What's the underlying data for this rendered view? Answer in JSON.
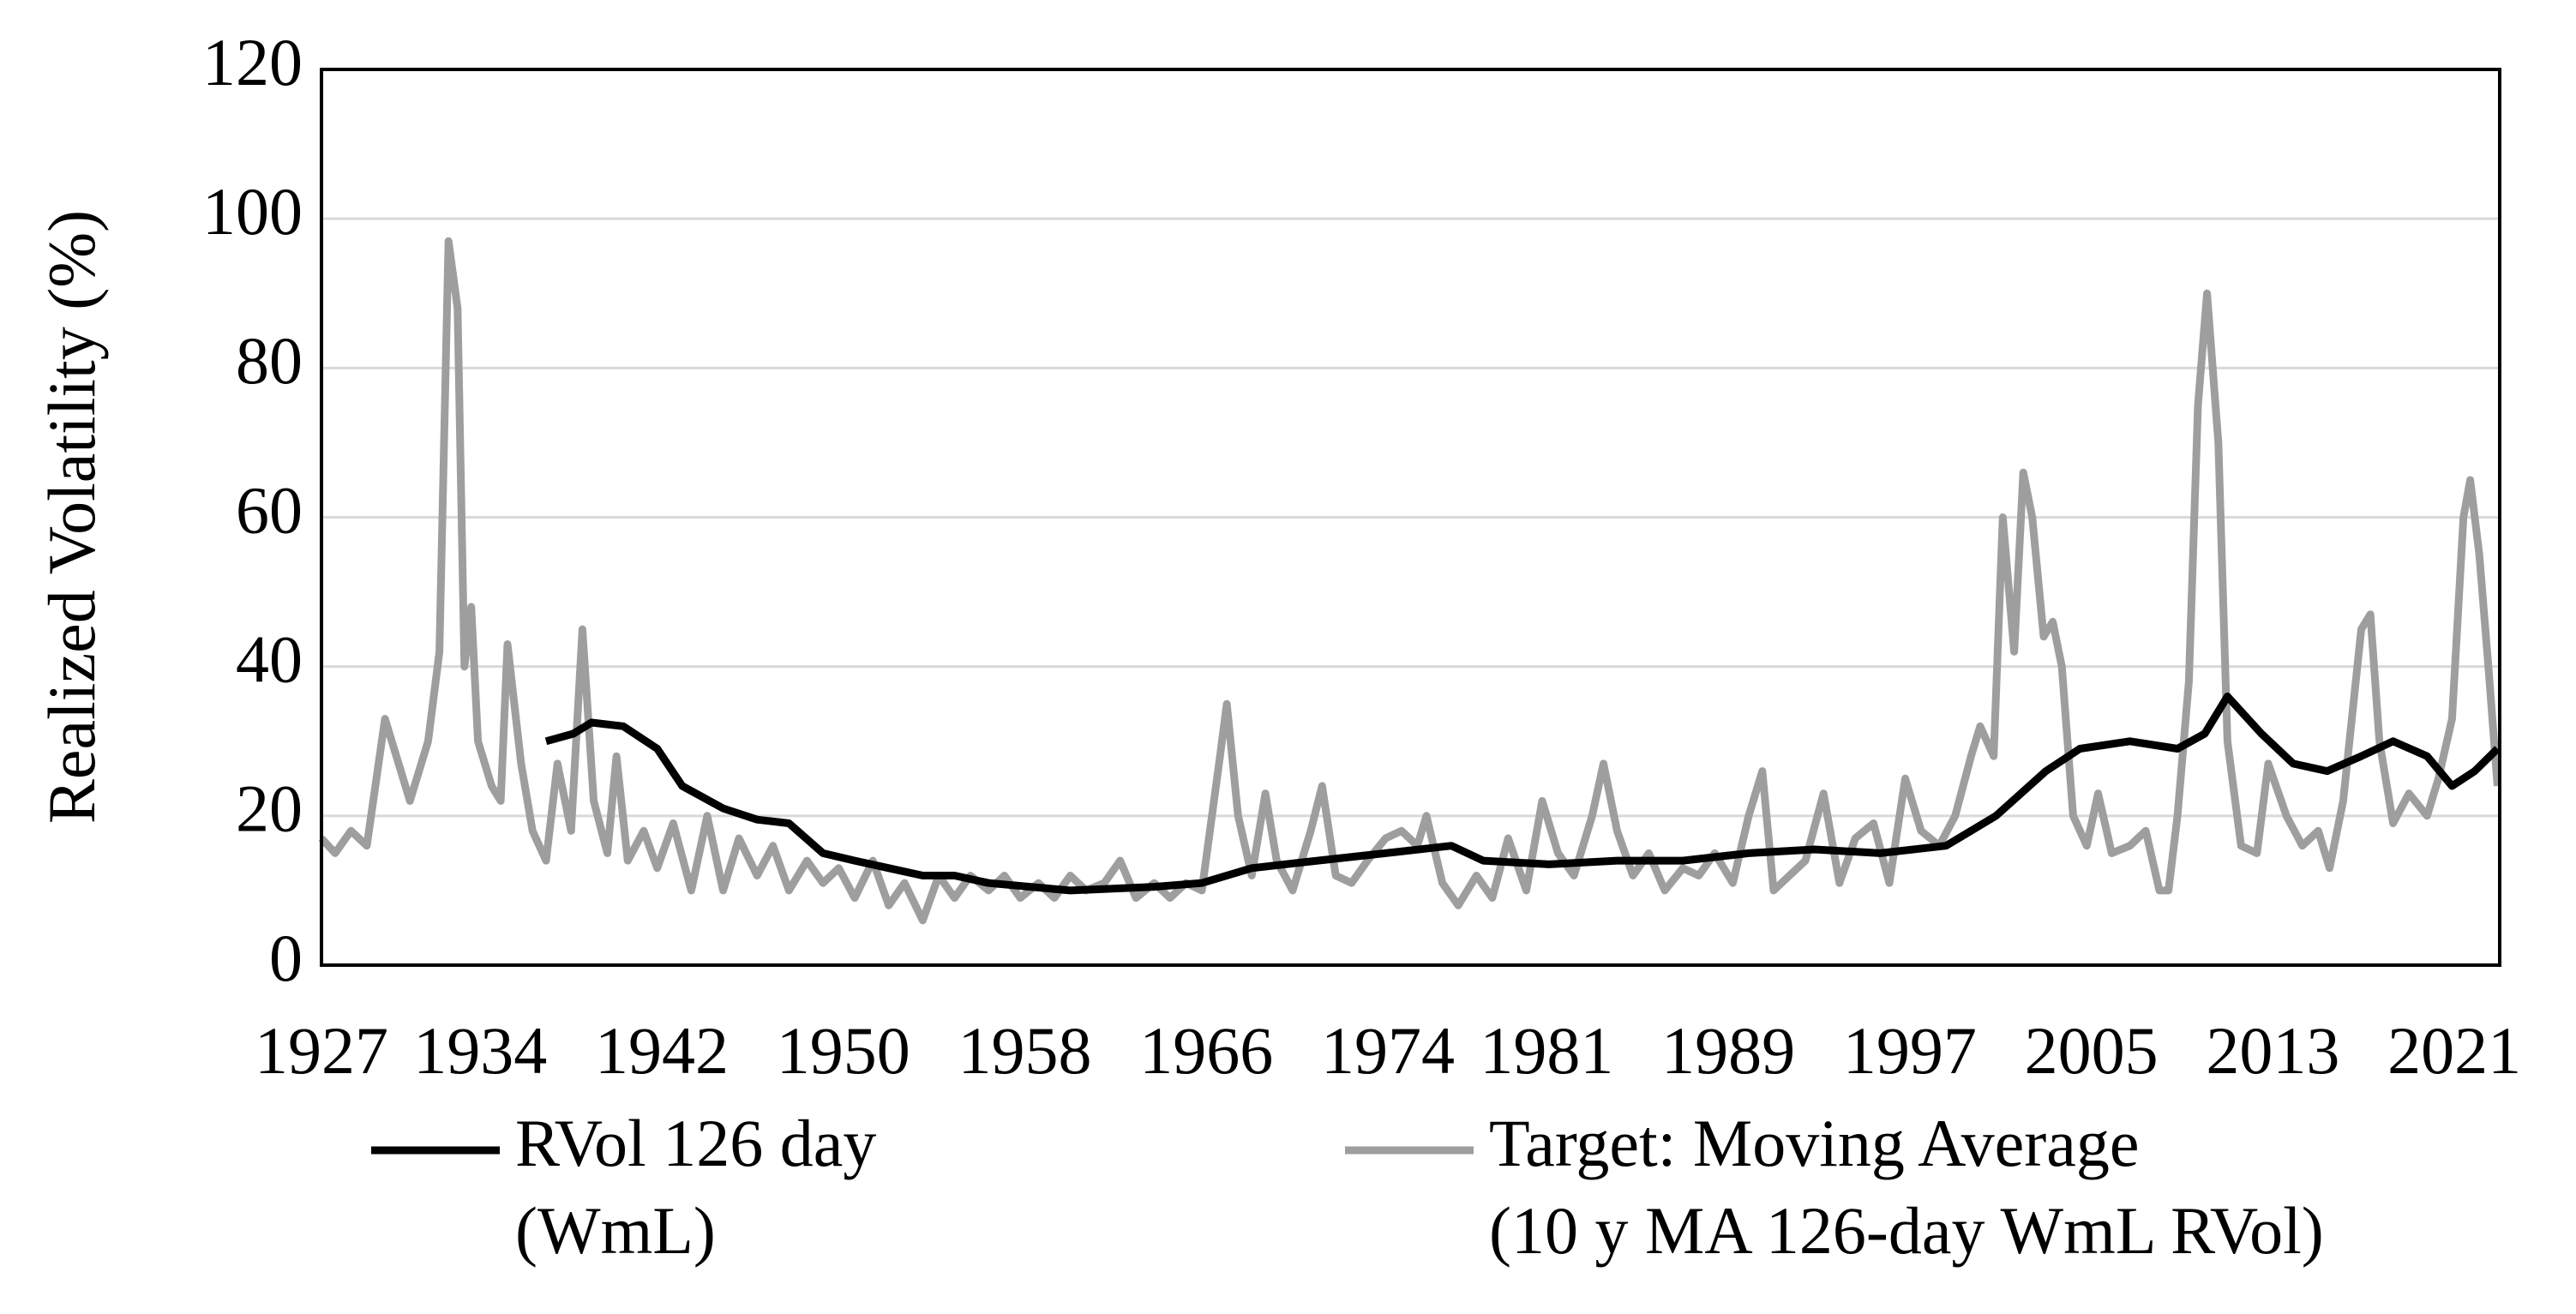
{
  "chart_data": {
    "type": "line",
    "ylabel": "Realized Volatility (%)",
    "xlim": [
      1927,
      2023
    ],
    "xticks": [
      1927,
      1934,
      1942,
      1950,
      1958,
      1966,
      1974,
      1981,
      1989,
      1997,
      2005,
      2013,
      2021
    ],
    "ylim": [
      0,
      120
    ],
    "yticks": [
      0,
      20,
      40,
      60,
      80,
      100,
      120
    ],
    "grid": true,
    "legend": "bottom",
    "series": [
      {
        "name": "RVol 126 day (WmL)",
        "color": "#000000",
        "x": [
          1936.9,
          1938.1,
          1938.9,
          1940.3,
          1941.8,
          1942.9,
          1944.7,
          1946.2,
          1947.6,
          1949.1,
          1950.5,
          1952.0,
          1953.5,
          1954.9,
          1956.4,
          1960.0,
          1963.7,
          1965.8,
          1968.0,
          1970.9,
          1973.9,
          1976.8,
          1978.2,
          1981.1,
          1984.1,
          1987.0,
          1989.9,
          1992.8,
          1995.7,
          1998.6,
          2000.8,
          2003.0,
          2004.5,
          2006.7,
          2008.8,
          2010.0,
          2011.0,
          2012.5,
          2013.9,
          2015.4,
          2016.9,
          2018.3,
          2019.8,
          2020.9,
          2021.9,
          2022.9
        ],
        "values": [
          30,
          31,
          32.5,
          32,
          29,
          24,
          21,
          19.5,
          19,
          15,
          14,
          13,
          12,
          12,
          11,
          10,
          10.5,
          11,
          13,
          14,
          15,
          16,
          14,
          13.5,
          14,
          14,
          15,
          15.5,
          15,
          16,
          20,
          26,
          29,
          30,
          29,
          31,
          36,
          31,
          27,
          26,
          28,
          30,
          28,
          24,
          26,
          29
        ]
      },
      {
        "name": "Target: Moving Average (10 y MA 126-day WmL RVol)",
        "color": "#9e9e9e",
        "x": [
          1927.0,
          1927.6,
          1928.3,
          1929.0,
          1929.8,
          1930.9,
          1931.7,
          1932.2,
          1932.6,
          1933.0,
          1933.3,
          1933.6,
          1933.9,
          1934.5,
          1934.9,
          1935.2,
          1935.8,
          1936.3,
          1936.9,
          1937.4,
          1938.0,
          1938.5,
          1939.0,
          1939.6,
          1940.0,
          1940.5,
          1941.2,
          1941.8,
          1942.5,
          1943.3,
          1944.0,
          1944.7,
          1945.4,
          1946.2,
          1946.9,
          1947.6,
          1948.4,
          1949.1,
          1949.8,
          1950.5,
          1951.3,
          1952.0,
          1952.7,
          1953.5,
          1954.2,
          1954.9,
          1955.6,
          1956.4,
          1957.1,
          1957.8,
          1958.6,
          1959.3,
          1960.0,
          1960.7,
          1961.5,
          1962.2,
          1962.9,
          1963.7,
          1964.4,
          1965.1,
          1965.8,
          1966.6,
          1966.9,
          1967.4,
          1968.0,
          1968.6,
          1969.1,
          1969.8,
          1970.6,
          1971.1,
          1971.7,
          1972.4,
          1973.1,
          1973.9,
          1974.6,
          1975.3,
          1975.7,
          1976.4,
          1977.1,
          1977.9,
          1978.6,
          1979.3,
          1980.1,
          1980.8,
          1981.5,
          1982.2,
          1983.0,
          1983.5,
          1984.1,
          1984.8,
          1985.5,
          1986.2,
          1987.0,
          1987.7,
          1988.4,
          1989.2,
          1989.9,
          1990.5,
          1991.0,
          1991.7,
          1992.4,
          1993.2,
          1993.9,
          1994.6,
          1995.4,
          1996.1,
          1996.8,
          1997.5,
          1998.3,
          1999.0,
          1999.7,
          2000.1,
          2000.7,
          2001.1,
          2001.6,
          2002.0,
          2002.4,
          2002.9,
          2003.3,
          2003.7,
          2004.2,
          2004.8,
          2005.3,
          2005.9,
          2006.7,
          2007.4,
          2008.0,
          2008.4,
          2008.8,
          2009.3,
          2009.7,
          2010.1,
          2010.6,
          2011.0,
          2011.6,
          2012.3,
          2012.8,
          2013.6,
          2014.3,
          2015.0,
          2015.5,
          2016.1,
          2016.9,
          2017.3,
          2017.7,
          2018.3,
          2019.0,
          2019.8,
          2020.3,
          2020.9,
          2021.4,
          2021.7,
          2022.1,
          2022.5,
          2022.9
        ],
        "values": [
          17,
          15,
          18,
          16,
          33,
          22,
          30,
          42,
          97,
          88,
          40,
          48,
          30,
          24,
          22,
          43,
          27,
          18,
          14,
          27,
          18,
          45,
          22,
          15,
          28,
          14,
          18,
          13,
          19,
          10,
          20,
          10,
          17,
          12,
          16,
          10,
          14,
          11,
          13,
          9,
          14,
          8,
          11,
          6,
          12,
          9,
          12,
          10,
          12,
          9,
          11,
          9,
          12,
          10,
          11,
          14,
          9,
          11,
          9,
          11,
          10,
          28,
          35,
          20,
          12,
          23,
          14,
          10,
          18,
          24,
          12,
          11,
          14,
          17,
          18,
          16,
          20,
          11,
          8,
          12,
          9,
          17,
          10,
          22,
          15,
          12,
          20,
          27,
          18,
          12,
          15,
          10,
          13,
          12,
          15,
          11,
          20,
          26,
          10,
          12,
          14,
          23,
          11,
          17,
          19,
          11,
          25,
          18,
          16,
          20,
          28,
          32,
          28,
          60,
          42,
          66,
          60,
          44,
          46,
          40,
          20,
          16,
          23,
          15,
          16,
          18,
          10,
          10,
          20,
          38,
          75,
          90,
          70,
          30,
          16,
          15,
          27,
          20,
          16,
          18,
          13,
          22,
          45,
          47,
          30,
          19,
          23,
          20,
          25,
          33,
          60,
          65,
          55,
          40,
          24
        ]
      }
    ]
  }
}
